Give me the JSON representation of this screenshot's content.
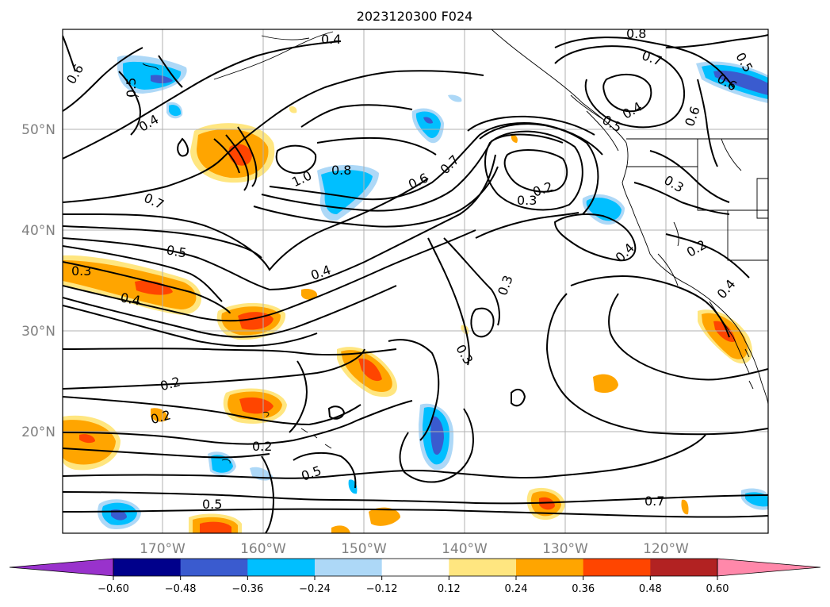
{
  "title": "2023120300 F024",
  "lat_labels": [
    "50°N",
    "40°N",
    "30°N",
    "20°N"
  ],
  "lon_labels": [
    "170°W",
    "160°W",
    "150°W",
    "140°W",
    "130°W",
    "120°W"
  ],
  "colorbar": {
    "ticks": [
      "−0.60",
      "−0.48",
      "−0.36",
      "−0.24",
      "−0.12",
      "0.12",
      "0.24",
      "0.36",
      "0.48",
      "0.60"
    ],
    "colors": [
      "#9932cc",
      "#00008b",
      "#3a5bcf",
      "#00bfff",
      "#add8f7",
      "#ffffff",
      "#ffe680",
      "#ffa500",
      "#ff4500",
      "#b22222",
      "#ff88aa"
    ]
  },
  "contour_labels": [
    "0.4",
    "0.8",
    "0.6",
    "0.7",
    "0.5",
    "0.6",
    "0.4",
    "1.0",
    "0.8",
    "0.6",
    "0.7",
    "0.5",
    "0.4",
    "0.5",
    "0.2",
    "0.3",
    "0.6",
    "0.7",
    "0.3",
    "0.5",
    "0.4",
    "0.3",
    "0.4",
    "0.4",
    "0.2",
    "0.4",
    "0.3",
    "0.3",
    "0.2",
    "0.2",
    "0.2",
    "0.5",
    "0.5",
    "0.7"
  ]
}
